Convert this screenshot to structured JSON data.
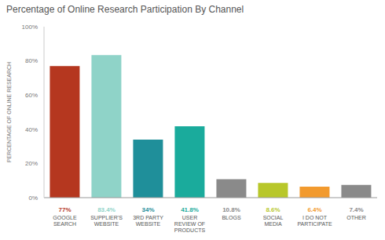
{
  "chart_data": {
    "type": "bar",
    "title": "Percentage of Online Research Participation By Channel",
    "y_label": "PERCENTAGE OF ONLINE RESEARCH",
    "categories": [
      "GOOGLE SEARCH",
      "SUPPLIER'S WEBSITE",
      "3RD PARTY WEBSITE",
      "USER REVIEW OF PRODUCTS",
      "BLOGS",
      "SOCIAL MEDIA",
      "I DO NOT PARTICIPATE",
      "OTHER"
    ],
    "values": [
      77,
      83.4,
      34,
      41.8,
      10.8,
      8.6,
      6.4,
      7.4
    ],
    "value_labels": [
      "77%",
      "83.4%",
      "34%",
      "41.8%",
      "10.8%",
      "8.6%",
      "6.4%",
      "7.4%"
    ],
    "colors": [
      "#b5371f",
      "#8fd3c8",
      "#1f8f9a",
      "#1aab9c",
      "#8a8a8a",
      "#b8c72a",
      "#f29a2e",
      "#8a8a8a"
    ],
    "ylim": [
      0,
      100
    ],
    "yticks": [
      {
        "value": 0,
        "label": "0%"
      },
      {
        "value": 20,
        "label": "20%"
      },
      {
        "value": 40,
        "label": "40%"
      },
      {
        "value": 60,
        "label": "60%"
      },
      {
        "value": 80,
        "label": "80%"
      },
      {
        "value": 100,
        "label": "100%"
      }
    ],
    "grid": false,
    "data_labels": true
  }
}
